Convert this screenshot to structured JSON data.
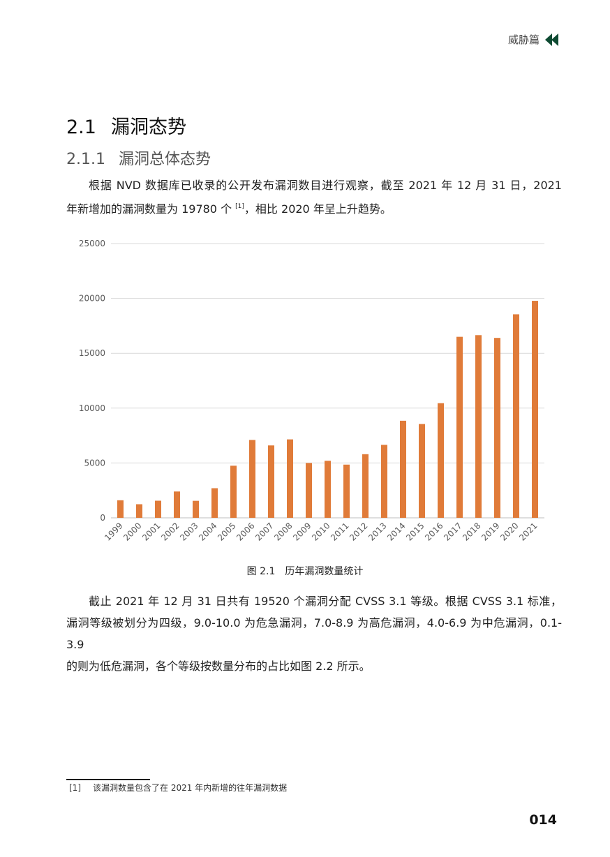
{
  "header": {
    "section_tag": "威胁篇"
  },
  "section": {
    "number": "2.1",
    "title": "漏洞态势"
  },
  "subsection": {
    "number": "2.1.1",
    "title": "漏洞总体态势"
  },
  "para1": {
    "line1": "根据 NVD 数据库已收录的公开发布漏洞数目进行观察，截至 2021 年 12 月 31 日，2021",
    "line2_pre": "年新增加的漏洞数量为 19780 个 ",
    "ref": "[1]",
    "line2_post": "，相比 2020 年呈上升趋势。"
  },
  "chart_data": {
    "type": "bar",
    "title": "",
    "xlabel": "",
    "ylabel": "",
    "ylim": [
      0,
      25000
    ],
    "yticks": [
      0,
      5000,
      10000,
      15000,
      20000,
      25000
    ],
    "grid": true,
    "bar_color": "#e07b39",
    "categories": [
      "1999",
      "2000",
      "2001",
      "2002",
      "2003",
      "2004",
      "2005",
      "2006",
      "2007",
      "2008",
      "2009",
      "2010",
      "2011",
      "2012",
      "2013",
      "2014",
      "2015",
      "2016",
      "2017",
      "2018",
      "2019",
      "2020",
      "2021"
    ],
    "values": [
      1600,
      1240,
      1560,
      2400,
      1550,
      2700,
      4750,
      7100,
      6600,
      7150,
      5000,
      5200,
      4850,
      5800,
      6650,
      8850,
      8550,
      10450,
      16500,
      16650,
      16400,
      18550,
      19780
    ]
  },
  "figure": {
    "caption": "图 2.1　历年漏洞数量统计"
  },
  "para2": {
    "line1": "截止 2021 年 12 月 31 日共有 19520 个漏洞分配 CVSS 3.1 等级。根据 CVSS 3.1 标准，",
    "line2": "漏洞等级被划分为四级，9.0-10.0 为危急漏洞，7.0-8.9 为高危漏洞，4.0-6.9 为中危漏洞，0.1-3.9",
    "line3": "的则为低危漏洞，各个等级按数量分布的占比如图 2.2 所示。"
  },
  "footnote": {
    "ref": "[1]",
    "text": "该漏洞数量包含了在 2021 年内新增的往年漏洞数据"
  },
  "page": {
    "number": "014"
  }
}
